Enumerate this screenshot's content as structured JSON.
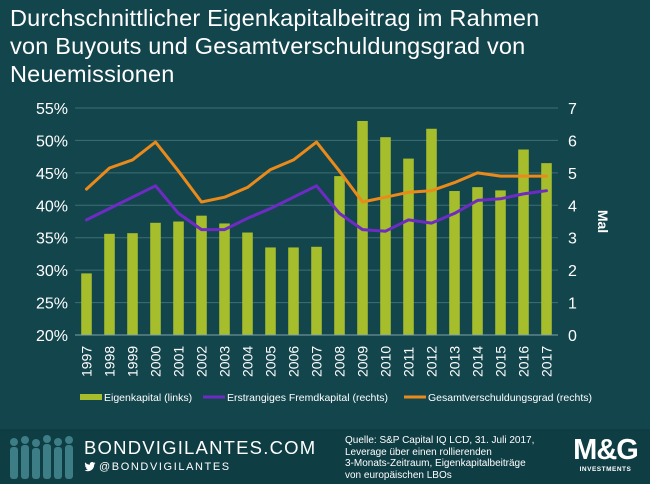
{
  "title": {
    "line1": "Durchschnittlicher Eigenkapitalbeitrag im Rahmen",
    "line2": "von Buyouts und Gesamtverschuldungsgrad von",
    "line3": "Neuemissionen"
  },
  "chart_data": {
    "type": "bar+line",
    "categories": [
      "1997",
      "1998",
      "1999",
      "2000",
      "2001",
      "2002",
      "2003",
      "2004",
      "2005",
      "2006",
      "2007",
      "2008",
      "2009",
      "2010",
      "2011",
      "2012",
      "2013",
      "2014",
      "2015",
      "2016",
      "2017"
    ],
    "left_axis": {
      "ticks": [
        "55%",
        "50%",
        "45%",
        "40%",
        "35%",
        "30%",
        "25%",
        "20%"
      ],
      "ylim": [
        20,
        55
      ]
    },
    "right_axis": {
      "label": "Mal",
      "ticks": [
        "7",
        "6",
        "5",
        "4",
        "3",
        "2",
        "1",
        "0"
      ],
      "ylim": [
        0,
        7
      ]
    },
    "series": [
      {
        "name": "Eigenkapital (links)",
        "type": "bar",
        "axis": "left",
        "color": "#a6bd2c",
        "values": [
          29.5,
          35.6,
          35.7,
          37.3,
          37.5,
          38.4,
          37.2,
          35.8,
          33.5,
          33.5,
          33.6,
          44.5,
          53.0,
          50.5,
          47.2,
          51.8,
          42.2,
          42.8,
          42.3,
          48.6,
          46.5
        ]
      },
      {
        "name": "Erstrangiges Fremdkapital (rechts)",
        "type": "line",
        "axis": "right",
        "color": "#6e2bc4",
        "values": [
          3.55,
          3.9,
          4.25,
          4.6,
          3.75,
          3.25,
          3.25,
          3.6,
          3.9,
          4.25,
          4.6,
          3.75,
          3.25,
          3.2,
          3.55,
          3.45,
          3.75,
          4.15,
          4.2,
          4.35,
          4.45
        ]
      },
      {
        "name": "Gesamtverschuldungsgrad (rechts)",
        "type": "line",
        "axis": "right",
        "color": "#e98a1a",
        "values": [
          4.5,
          5.15,
          5.4,
          5.95,
          5.05,
          4.1,
          4.25,
          4.55,
          5.1,
          5.4,
          5.95,
          5.05,
          4.1,
          4.25,
          4.4,
          4.45,
          4.7,
          5.0,
          4.9,
          4.9,
          4.9
        ]
      }
    ]
  },
  "footer": {
    "brand": "BONDVIGILANTES.COM",
    "handle": "@BONDVIGILANTES",
    "source_lines": [
      "Quelle: S&P Capital IQ LCD, 31. Juli 2017,",
      "Leverage über einen rollierenden",
      "3-Monats-Zeitraum, Eigenkapitalbeiträge",
      "von europäischen LBOs"
    ],
    "logo": "M&G",
    "logo_sub": "INVESTMENTS"
  },
  "colors": {
    "background": "#13454d",
    "footer": "#0f3d44"
  }
}
